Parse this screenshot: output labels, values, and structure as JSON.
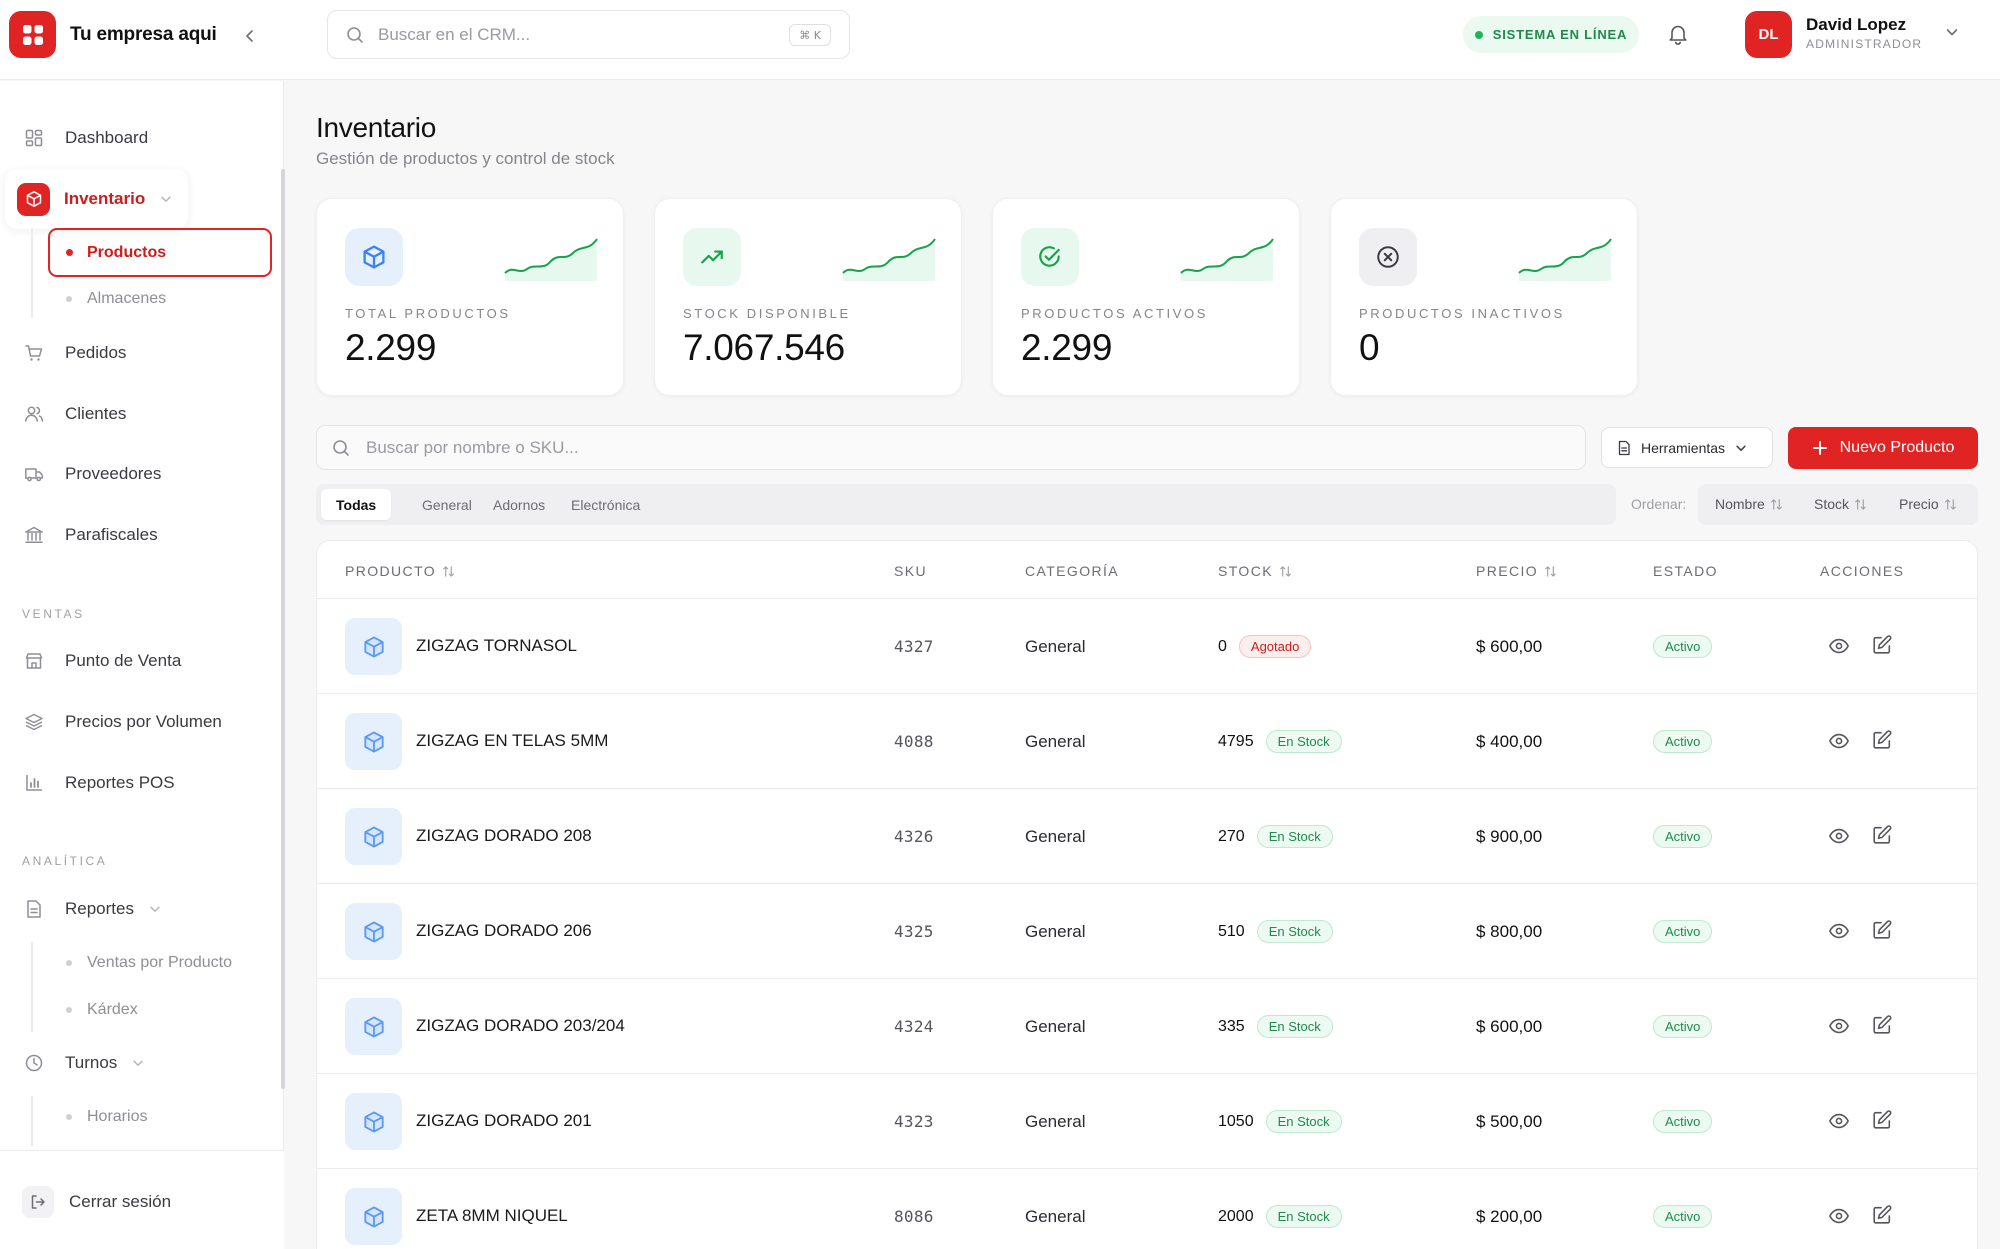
{
  "app": {
    "brand": "Tu empresa aqui",
    "search_placeholder": "Buscar en el CRM...",
    "search_shortcut": "⌘ K",
    "system_status": "SISTEMA EN LÍNEA",
    "user": {
      "initials": "DL",
      "name": "David Lopez",
      "role": "ADMINISTRADOR"
    }
  },
  "sidebar": {
    "dashboard": "Dashboard",
    "inventario": "Inventario",
    "inventario_sub": [
      "Productos",
      "Almacenes"
    ],
    "pedidos": "Pedidos",
    "clientes": "Clientes",
    "proveedores": "Proveedores",
    "parafiscales": "Parafiscales",
    "section_ventas": "VENTAS",
    "punto_venta": "Punto de Venta",
    "precios_volumen": "Precios por Volumen",
    "reportes_pos": "Reportes POS",
    "section_analitica": "ANALÍTICA",
    "reportes": "Reportes",
    "reportes_sub": [
      "Ventas por Producto",
      "Kárdex"
    ],
    "turnos": "Turnos",
    "turnos_sub": [
      "Horarios"
    ],
    "logout": "Cerrar sesión"
  },
  "page": {
    "title": "Inventario",
    "subtitle": "Gestión de productos y control de stock"
  },
  "stats": [
    {
      "label": "TOTAL PRODUCTOS",
      "value": "2.299",
      "icon": "box-icon",
      "color": "#3b82f6",
      "bg": "#e6f0fd"
    },
    {
      "label": "STOCK DISPONIBLE",
      "value": "7.067.546",
      "icon": "trending-up-icon",
      "color": "#16a34a",
      "bg": "#e7f8ee"
    },
    {
      "label": "PRODUCTOS ACTIVOS",
      "value": "2.299",
      "icon": "check-circle-icon",
      "color": "#16a34a",
      "bg": "#e7f8ee"
    },
    {
      "label": "PRODUCTOS INACTIVOS",
      "value": "0",
      "icon": "x-circle-icon",
      "color": "#3a3a40",
      "bg": "#efeff1"
    }
  ],
  "toolbar": {
    "search_placeholder": "Buscar por nombre o SKU...",
    "tools_label": "Herramientas",
    "new_label": "Nuevo Producto"
  },
  "filters": [
    "Todas",
    "General",
    "Adornos",
    "Electrónica"
  ],
  "sort": {
    "label": "Ordenar:",
    "options": [
      "Nombre",
      "Stock",
      "Precio"
    ]
  },
  "table": {
    "headers": [
      "PRODUCTO",
      "SKU",
      "CATEGORÍA",
      "STOCK",
      "PRECIO",
      "ESTADO",
      "ACCIONES"
    ],
    "rows": [
      {
        "name": "ZIGZAG TORNASOL",
        "sku": "4327",
        "category": "General",
        "stock": "0",
        "stock_badge": "Agotado",
        "stock_status": "out",
        "price": "$ 600,00",
        "estado": "Activo"
      },
      {
        "name": "ZIGZAG EN TELAS 5MM",
        "sku": "4088",
        "category": "General",
        "stock": "4795",
        "stock_badge": "En Stock",
        "stock_status": "in",
        "price": "$ 400,00",
        "estado": "Activo"
      },
      {
        "name": "ZIGZAG DORADO 208",
        "sku": "4326",
        "category": "General",
        "stock": "270",
        "stock_badge": "En Stock",
        "stock_status": "in",
        "price": "$ 900,00",
        "estado": "Activo"
      },
      {
        "name": "ZIGZAG DORADO 206",
        "sku": "4325",
        "category": "General",
        "stock": "510",
        "stock_badge": "En Stock",
        "stock_status": "in",
        "price": "$ 800,00",
        "estado": "Activo"
      },
      {
        "name": "ZIGZAG DORADO 203/204",
        "sku": "4324",
        "category": "General",
        "stock": "335",
        "stock_badge": "En Stock",
        "stock_status": "in",
        "price": "$ 600,00",
        "estado": "Activo"
      },
      {
        "name": "ZIGZAG DORADO 201",
        "sku": "4323",
        "category": "General",
        "stock": "1050",
        "stock_badge": "En Stock",
        "stock_status": "in",
        "price": "$ 500,00",
        "estado": "Activo"
      },
      {
        "name": "ZETA 8MM NIQUEL",
        "sku": "8086",
        "category": "General",
        "stock": "2000",
        "stock_badge": "En Stock",
        "stock_status": "in",
        "price": "$ 200,00",
        "estado": "Activo"
      }
    ]
  },
  "colors": {
    "accent": "#e02424",
    "success": "#16a34a",
    "info": "#3b82f6"
  }
}
